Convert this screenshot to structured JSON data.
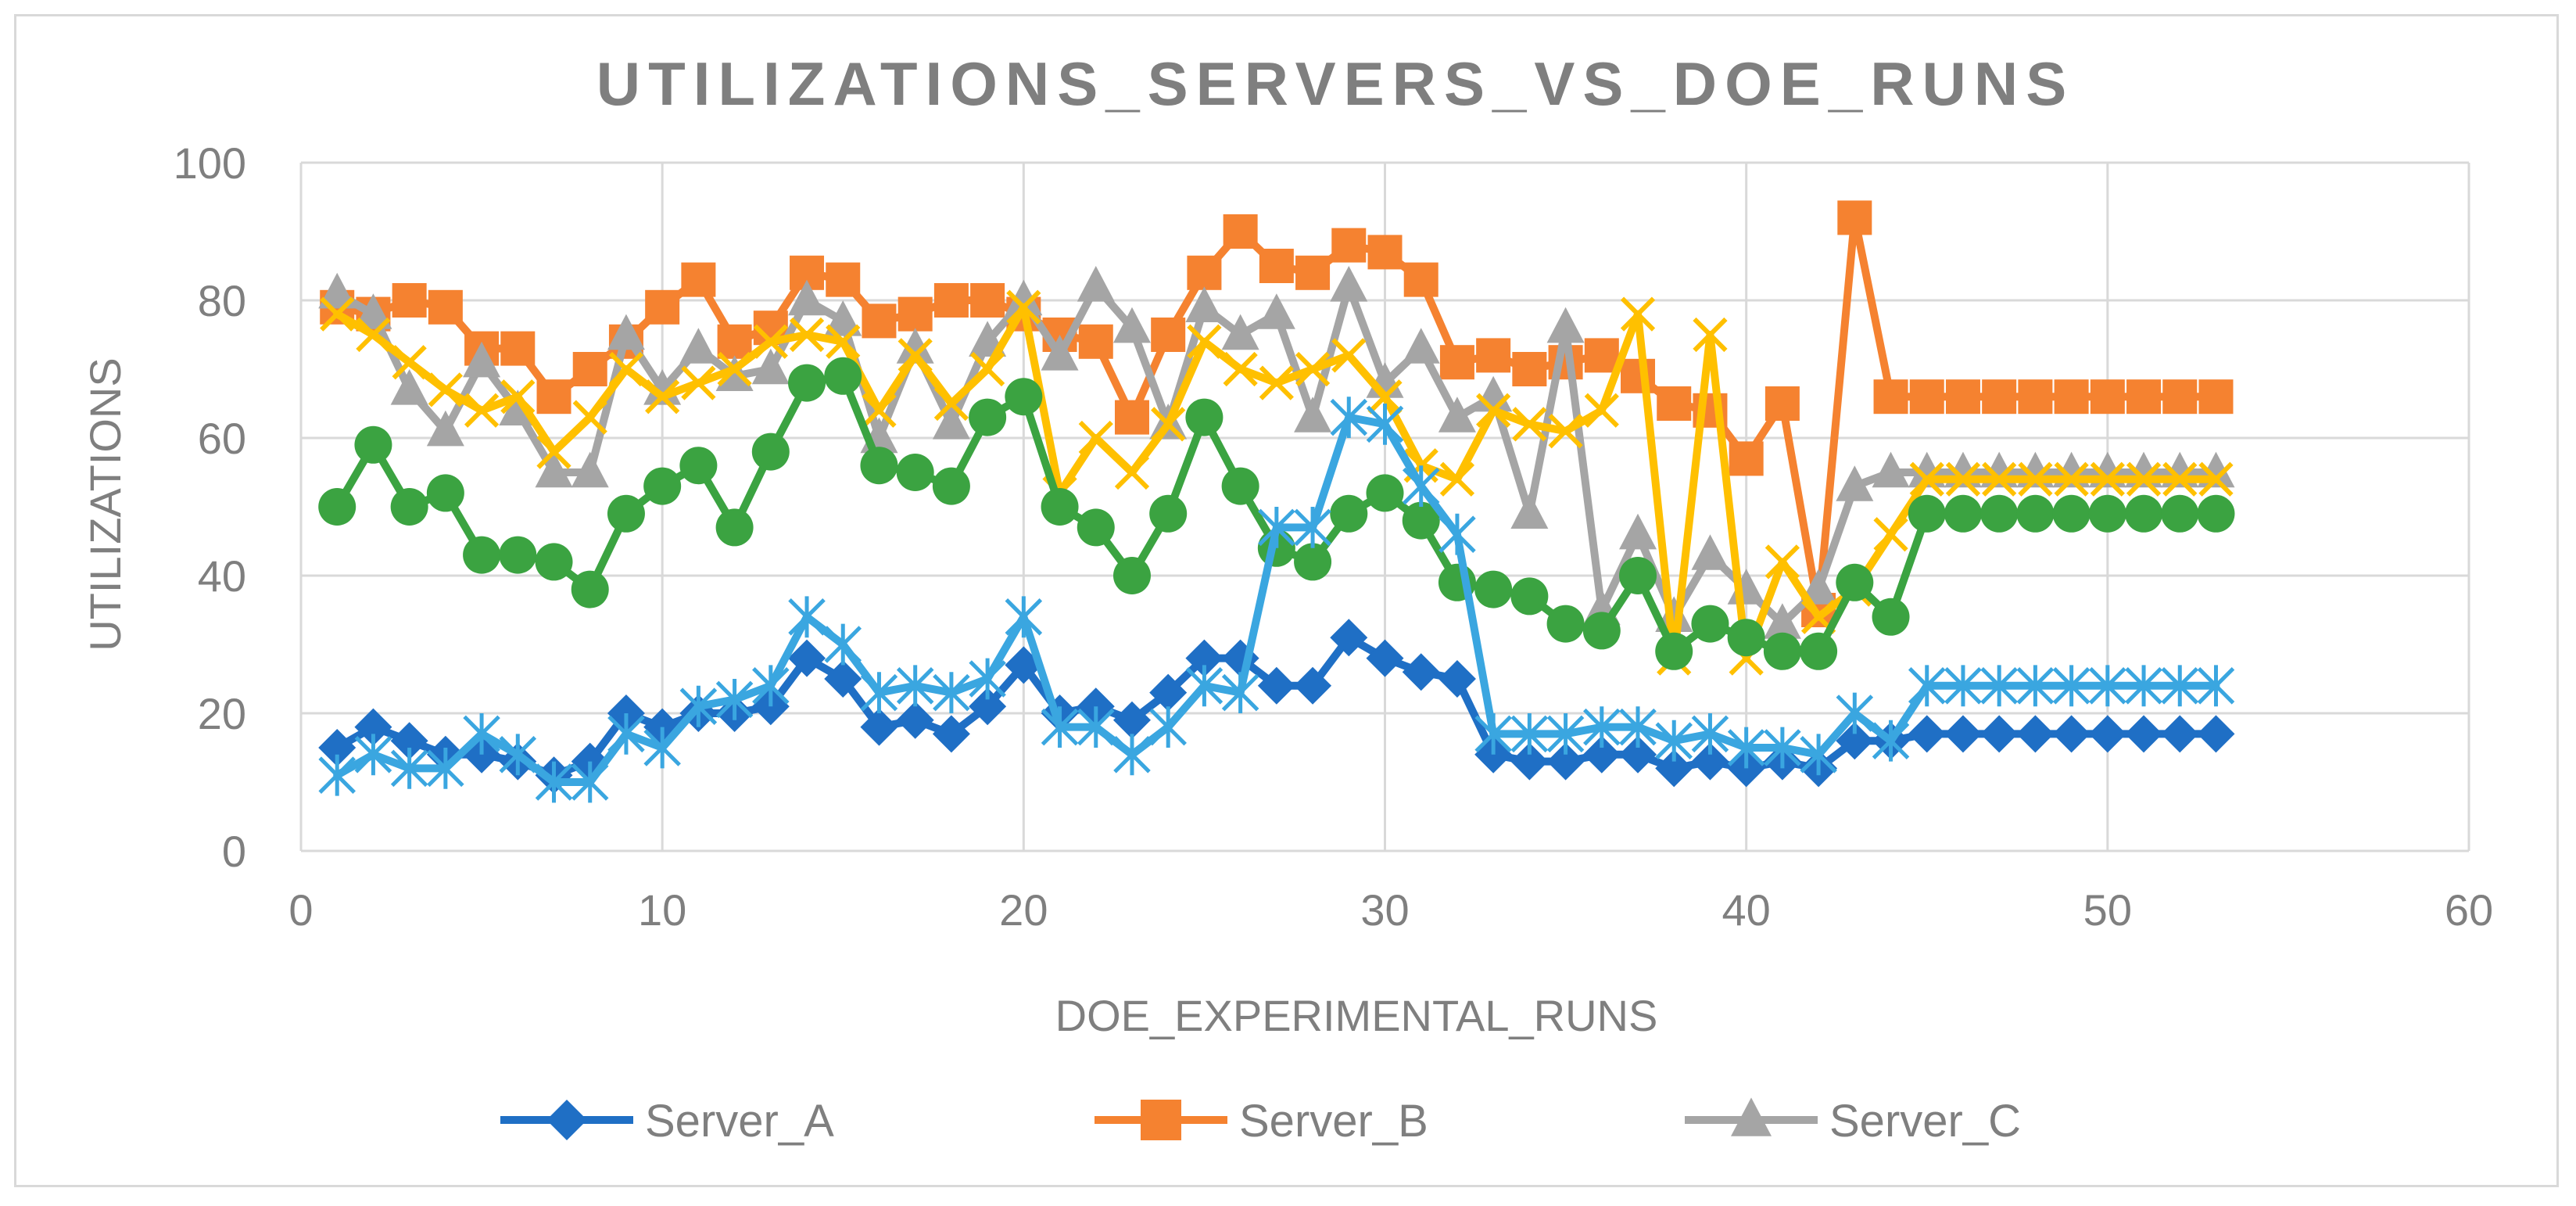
{
  "chart_data": {
    "type": "line",
    "title": "UTILIZATIONS_SERVERS_VS_DOE_RUNS",
    "xlabel": "DOE_EXPERIMENTAL_RUNS",
    "ylabel": "UTILIZATIONS",
    "xlim": [
      0,
      60
    ],
    "ylim": [
      0,
      100
    ],
    "xticks": [
      0,
      10,
      20,
      30,
      40,
      50,
      60
    ],
    "yticks": [
      0,
      20,
      40,
      60,
      80,
      100
    ],
    "grid": true,
    "legend_position": "bottom",
    "x": [
      1,
      2,
      3,
      4,
      5,
      6,
      7,
      8,
      9,
      10,
      11,
      12,
      13,
      14,
      15,
      16,
      17,
      18,
      19,
      20,
      21,
      22,
      23,
      24,
      25,
      26,
      27,
      28,
      29,
      30,
      31,
      32,
      33,
      34,
      35,
      36,
      37,
      38,
      39,
      40,
      41,
      42,
      43,
      44,
      45,
      46,
      47,
      48,
      49,
      50,
      51,
      52,
      53
    ],
    "series": [
      {
        "name": "Server_A",
        "color": "#1f6fc5",
        "marker": "diamond",
        "in_legend": true,
        "values": [
          15,
          18,
          16,
          14,
          14,
          13,
          11,
          13,
          20,
          18,
          20,
          20,
          21,
          28,
          25,
          18,
          19,
          17,
          21,
          27,
          20,
          21,
          19,
          23,
          28,
          28,
          24,
          24,
          31,
          28,
          26,
          25,
          14,
          13,
          13,
          14,
          14,
          12,
          13,
          12,
          13,
          12,
          16,
          16,
          17,
          17,
          17,
          17,
          17,
          17,
          17,
          17,
          17
        ]
      },
      {
        "name": "Server_B",
        "color": "#f58230",
        "marker": "square",
        "in_legend": true,
        "values": [
          79,
          78,
          80,
          79,
          73,
          73,
          66,
          70,
          74,
          79,
          83,
          74,
          76,
          84,
          83,
          77,
          78,
          80,
          80,
          78,
          75,
          74,
          63,
          75,
          84,
          90,
          85,
          84,
          88,
          87,
          83,
          71,
          72,
          70,
          71,
          72,
          69,
          65,
          64,
          57,
          65,
          35,
          92,
          66,
          66,
          66,
          66,
          66,
          66,
          66,
          66,
          66,
          66
        ]
      },
      {
        "name": "Server_C",
        "color": "#a5a5a5",
        "marker": "triangle",
        "in_legend": true,
        "values": [
          81,
          78,
          67,
          61,
          71,
          64,
          55,
          55,
          75,
          67,
          73,
          69,
          70,
          80,
          77,
          60,
          73,
          62,
          74,
          80,
          72,
          82,
          76,
          62,
          79,
          75,
          78,
          63,
          82,
          68,
          73,
          63,
          66,
          49,
          76,
          35,
          46,
          34,
          43,
          38,
          33,
          38,
          53,
          55,
          55,
          55,
          55,
          55,
          55,
          55,
          55,
          55,
          55
        ]
      },
      {
        "name": "",
        "color": "#ffc000",
        "marker": "x",
        "in_legend": false,
        "values": [
          78,
          75,
          71,
          67,
          64,
          66,
          58,
          63,
          70,
          66,
          68,
          70,
          74,
          75,
          74,
          64,
          72,
          65,
          70,
          79,
          52,
          60,
          55,
          62,
          74,
          70,
          68,
          70,
          72,
          66,
          56,
          54,
          64,
          62,
          61,
          64,
          78,
          28,
          75,
          28,
          42,
          34,
          38,
          46,
          54,
          54,
          54,
          54,
          54,
          54,
          54,
          54,
          54
        ]
      },
      {
        "name": "",
        "color": "#3ba341",
        "marker": "circle",
        "in_legend": false,
        "values": [
          50,
          59,
          50,
          52,
          43,
          43,
          42,
          38,
          49,
          53,
          56,
          47,
          58,
          68,
          69,
          56,
          55,
          53,
          63,
          66,
          50,
          47,
          40,
          49,
          63,
          53,
          44,
          42,
          49,
          52,
          48,
          39,
          38,
          37,
          33,
          32,
          40,
          29,
          33,
          31,
          29,
          29,
          39,
          34,
          49,
          49,
          49,
          49,
          49,
          49,
          49,
          49,
          49
        ]
      },
      {
        "name": "",
        "color": "#3aa6e0",
        "marker": "asterisk",
        "in_legend": false,
        "values": [
          11,
          14,
          12,
          12,
          17,
          14,
          10,
          10,
          17,
          15,
          21,
          22,
          24,
          34,
          30,
          23,
          24,
          23,
          25,
          34,
          18,
          18,
          14,
          18,
          24,
          23,
          47,
          47,
          63,
          62,
          53,
          46,
          17,
          17,
          17,
          18,
          18,
          16,
          17,
          15,
          15,
          14,
          20,
          16,
          24,
          24,
          24,
          24,
          24,
          24,
          24,
          24,
          24
        ]
      }
    ]
  }
}
